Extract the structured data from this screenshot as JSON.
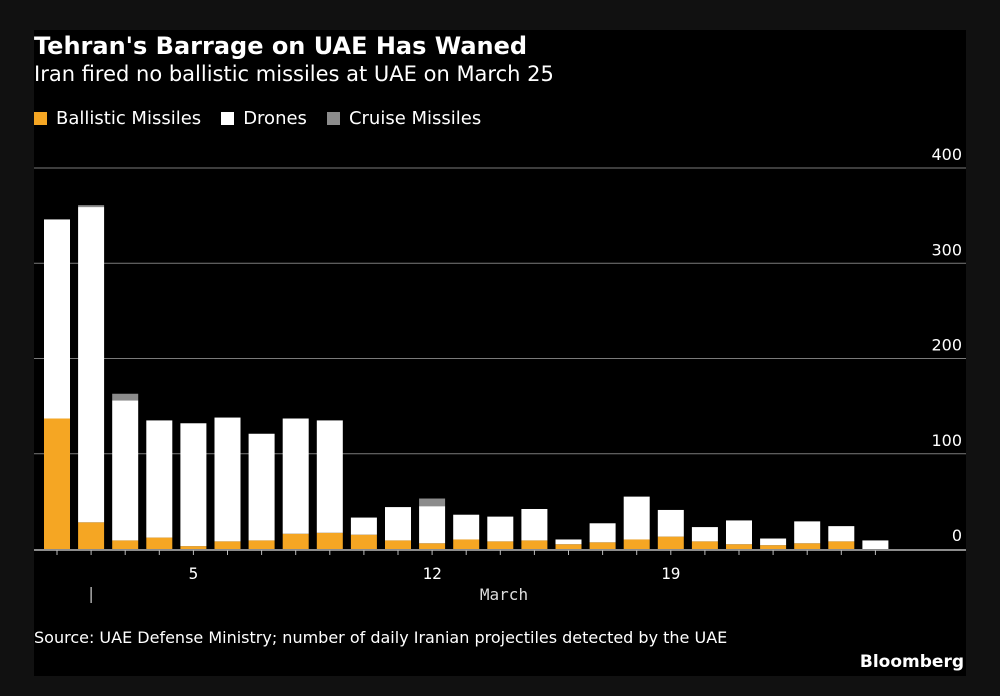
{
  "title": "Tehran's Barrage on UAE Has Waned",
  "subtitle": "Iran fired no ballistic missiles at UAE on March 25",
  "source": "Source: UAE Defense Ministry; number of daily Iranian projectiles detected by the UAE",
  "brand": "Bloomberg",
  "colors": {
    "ballistic": "#f5a623",
    "drones": "#ffffff",
    "cruise": "#8c8c8c",
    "background": "#000000",
    "grid": "#7a7a7a",
    "text": "#ffffff"
  },
  "chart_data": {
    "type": "bar",
    "stacked": true,
    "legend_position": "top-left",
    "y_axis_side": "right",
    "grid": true,
    "ylim": [
      0,
      400
    ],
    "yticks": [
      "0",
      "100",
      "200",
      "300",
      "400"
    ],
    "x_tick_labels": [
      {
        "category": "5",
        "label": "5"
      },
      {
        "category": "12",
        "label": "12"
      },
      {
        "category": "19",
        "label": "19"
      }
    ],
    "x_marker_category": "2",
    "xlabel": "March",
    "categories": [
      "1",
      "2",
      "3",
      "4",
      "5",
      "6",
      "7",
      "8",
      "9",
      "10",
      "11",
      "12",
      "13",
      "14",
      "15",
      "16",
      "17",
      "18",
      "19",
      "20",
      "21",
      "22",
      "23",
      "24",
      "25"
    ],
    "series": [
      {
        "name": "Ballistic Missiles",
        "color_key": "ballistic",
        "values": [
          137,
          28,
          9,
          12,
          3,
          8,
          9,
          16,
          17,
          15,
          9,
          6,
          10,
          8,
          9,
          5,
          7,
          10,
          13,
          8,
          5,
          4,
          6,
          8,
          0
        ]
      },
      {
        "name": "Drones",
        "color_key": "drones",
        "values": [
          209,
          331,
          147,
          123,
          129,
          130,
          112,
          121,
          118,
          18,
          35,
          39,
          26,
          26,
          33,
          5,
          20,
          45,
          28,
          15,
          25,
          7,
          23,
          16,
          9
        ]
      },
      {
        "name": "Cruise Missiles",
        "color_key": "cruise",
        "values": [
          0,
          2,
          7,
          0,
          0,
          0,
          0,
          0,
          0,
          0,
          0,
          8,
          0,
          0,
          0,
          0,
          0,
          0,
          0,
          0,
          0,
          0,
          0,
          0,
          0
        ]
      }
    ]
  }
}
